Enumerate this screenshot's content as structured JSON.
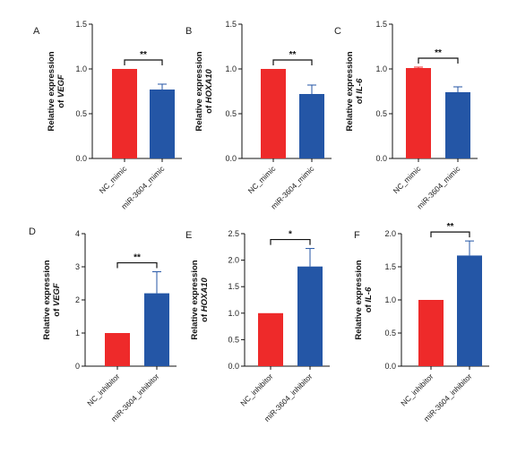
{
  "colors": {
    "control": "#ee2a2a",
    "treated": "#2456a6",
    "ink": "#111111"
  },
  "chart_data": [
    {
      "panel": "A",
      "type": "bar",
      "ylabel_plain": "Relative expression\nof ",
      "ylabel_italic": "VEGF",
      "categories": [
        "NC_mimic",
        "miR-3604_mimic"
      ],
      "values": [
        1.0,
        0.77
      ],
      "errors": [
        0.0,
        0.06
      ],
      "ylim": [
        0,
        1.5
      ],
      "yticks": [
        "0.0",
        "0.5",
        "1.0",
        "1.5"
      ],
      "ytick_values": [
        0,
        0.5,
        1.0,
        1.5
      ],
      "significance": "**"
    },
    {
      "panel": "B",
      "type": "bar",
      "ylabel_plain": "Relative expression\nof ",
      "ylabel_italic": "HOXA10",
      "categories": [
        "NC_mimic",
        "miR-3604_mimic"
      ],
      "values": [
        1.0,
        0.72
      ],
      "errors": [
        0.0,
        0.1
      ],
      "ylim": [
        0,
        1.5
      ],
      "yticks": [
        "0.0",
        "0.5",
        "1.0",
        "1.5"
      ],
      "ytick_values": [
        0,
        0.5,
        1.0,
        1.5
      ],
      "significance": "**"
    },
    {
      "panel": "C",
      "type": "bar",
      "ylabel_plain": "Relative expression\nof ",
      "ylabel_italic": "IL-6",
      "categories": [
        "NC_mimic",
        "miR-3604_mimic"
      ],
      "values": [
        1.01,
        0.74
      ],
      "errors": [
        0.01,
        0.06
      ],
      "ylim": [
        0,
        1.5
      ],
      "yticks": [
        "0.0",
        "0.5",
        "1.0",
        "1.5"
      ],
      "ytick_values": [
        0,
        0.5,
        1.0,
        1.5
      ],
      "significance": "**"
    },
    {
      "panel": "D",
      "type": "bar",
      "ylabel_plain": "Relative expression\nof ",
      "ylabel_italic": "VEGF",
      "categories": [
        "NC_inhibitor",
        "miR-3604_inhibitor"
      ],
      "values": [
        1.0,
        2.2
      ],
      "errors": [
        0.0,
        0.65
      ],
      "ylim": [
        0,
        4
      ],
      "yticks": [
        "0",
        "1",
        "2",
        "3",
        "4"
      ],
      "ytick_values": [
        0,
        1,
        2,
        3,
        4
      ],
      "significance": "**"
    },
    {
      "panel": "E",
      "type": "bar",
      "ylabel_plain": "Relative expression\nof ",
      "ylabel_italic": "HOXA10",
      "categories": [
        "NC_inhibitor",
        "miR-3604_inhibitor"
      ],
      "values": [
        1.0,
        1.88
      ],
      "errors": [
        0.0,
        0.34
      ],
      "ylim": [
        0,
        2.5
      ],
      "yticks": [
        "0.0",
        "0.5",
        "1.0",
        "1.5",
        "2.0",
        "2.5"
      ],
      "ytick_values": [
        0,
        0.5,
        1.0,
        1.5,
        2.0,
        2.5
      ],
      "significance": "*"
    },
    {
      "panel": "F",
      "type": "bar",
      "ylabel_plain": "Relative expression\nof ",
      "ylabel_italic": "IL-6",
      "categories": [
        "NC_inhibitor",
        "miR-3604_inhibitor"
      ],
      "values": [
        1.0,
        1.67
      ],
      "errors": [
        0.0,
        0.22
      ],
      "ylim": [
        0,
        2.0
      ],
      "yticks": [
        "0.0",
        "0.5",
        "1.0",
        "1.5",
        "2.0"
      ],
      "ytick_values": [
        0,
        0.5,
        1.0,
        1.5,
        2.0
      ],
      "significance": "**"
    }
  ]
}
